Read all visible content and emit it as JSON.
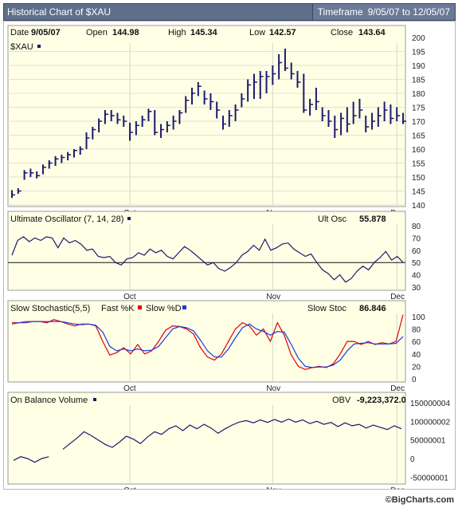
{
  "header": {
    "title": "Historical Chart of $XAU",
    "timeframe_label": "Timeframe",
    "timeframe_value": "9/05/07 to   12/05/07"
  },
  "footer": {
    "copyright": "©BigCharts.com"
  },
  "colors": {
    "panel_bg": "#ffffe6",
    "line": "#1a1a6e",
    "fast_k": "#dd0000",
    "slow_d": "#1a3adf"
  },
  "chart_data": [
    {
      "type": "ohlc",
      "panel": "price",
      "legend": "$XAU",
      "info": {
        "date_label": "Date",
        "date": "9/05/07",
        "open_label": "Open",
        "open": "144.98",
        "high_label": "High",
        "high": "145.34",
        "low_label": "Low",
        "low": "142.57",
        "close_label": "Close",
        "close": "143.64"
      },
      "ylim": [
        140,
        202
      ],
      "yticks": [
        140,
        145,
        150,
        155,
        160,
        165,
        170,
        175,
        180,
        185,
        190,
        195,
        200
      ],
      "xticks": [
        {
          "label": "Oct",
          "index": 19
        },
        {
          "label": "Nov",
          "index": 42
        },
        {
          "label": "Dec",
          "index": 62
        }
      ],
      "bars": [
        [
          142.5,
          145.3,
          143.6
        ],
        [
          144,
          146,
          145
        ],
        [
          149,
          152.5,
          151.5
        ],
        [
          150,
          153,
          151.5
        ],
        [
          149.5,
          152,
          150.5
        ],
        [
          151,
          154.5,
          153.5
        ],
        [
          153,
          156,
          155
        ],
        [
          154,
          157.5,
          156.5
        ],
        [
          155,
          158,
          157
        ],
        [
          156,
          159,
          158
        ],
        [
          157,
          160,
          159.5
        ],
        [
          158,
          161,
          160
        ],
        [
          160,
          166,
          164
        ],
        [
          163.5,
          168,
          167
        ],
        [
          166,
          171,
          170
        ],
        [
          169,
          174,
          172.5
        ],
        [
          170,
          174,
          172
        ],
        [
          169,
          173,
          170.5
        ],
        [
          168,
          172,
          170
        ],
        [
          163,
          169.5,
          166
        ],
        [
          165,
          170,
          168.5
        ],
        [
          168,
          172,
          170.5
        ],
        [
          170,
          174.5,
          173.5
        ],
        [
          165,
          174,
          166
        ],
        [
          164,
          169,
          167
        ],
        [
          166,
          170,
          168.5
        ],
        [
          167,
          172,
          170
        ],
        [
          169,
          174,
          173
        ],
        [
          173,
          179,
          177.5
        ],
        [
          176,
          182,
          180
        ],
        [
          179,
          184,
          182.5
        ],
        [
          176,
          181,
          178
        ],
        [
          174,
          180,
          177
        ],
        [
          171,
          177,
          174
        ],
        [
          167,
          172,
          169
        ],
        [
          168,
          174,
          172
        ],
        [
          170,
          176,
          174
        ],
        [
          175,
          180,
          178
        ],
        [
          177,
          185,
          183
        ],
        [
          178,
          187,
          184
        ],
        [
          178,
          188,
          186
        ],
        [
          180,
          188,
          186
        ],
        [
          183,
          190,
          187
        ],
        [
          185,
          194,
          191
        ],
        [
          188,
          196,
          189
        ],
        [
          185,
          191,
          187
        ],
        [
          182,
          188,
          184
        ],
        [
          173,
          187,
          174
        ],
        [
          172,
          178,
          176
        ],
        [
          174,
          182,
          177
        ],
        [
          170,
          175,
          172
        ],
        [
          168,
          174,
          170
        ],
        [
          164,
          172,
          167
        ],
        [
          165,
          173,
          171
        ],
        [
          166,
          175,
          169
        ],
        [
          169,
          177,
          172
        ],
        [
          171,
          178,
          174
        ],
        [
          166,
          172,
          168
        ],
        [
          167,
          173,
          170
        ],
        [
          168,
          175,
          172
        ],
        [
          170,
          177,
          174
        ],
        [
          169,
          176,
          171
        ],
        [
          170,
          175,
          172
        ],
        [
          169,
          173,
          170
        ]
      ]
    },
    {
      "type": "line",
      "panel": "ultimate-oscillator",
      "title": "Ultimate Oscillator (7, 14, 28)",
      "readout_label": "Ult Osc",
      "readout": "55.878",
      "ylim": [
        30,
        80
      ],
      "yticks": [
        30,
        40,
        50,
        60,
        70,
        80
      ],
      "reference_line": 50,
      "values": [
        56,
        68,
        71,
        67,
        70,
        68,
        71,
        70,
        62,
        70,
        66,
        68,
        65,
        60,
        61,
        55,
        54,
        55,
        50,
        48,
        53,
        54,
        58,
        56,
        61,
        58,
        60,
        55,
        53,
        58,
        63,
        60,
        56,
        52,
        48,
        50,
        45,
        43,
        46,
        50,
        56,
        59,
        64,
        60,
        69,
        60,
        62,
        65,
        66,
        61,
        58,
        55,
        57,
        50,
        44,
        41,
        36,
        40,
        34,
        37,
        43,
        47,
        44,
        50,
        54,
        59,
        52,
        55,
        50
      ]
    },
    {
      "type": "line",
      "panel": "slow-stochastic",
      "title": "Slow Stochastic(5,5)",
      "legend": [
        {
          "name": "Fast %K",
          "color": "#dd0000"
        },
        {
          "name": "Slow %D",
          "color": "#1a3adf"
        }
      ],
      "readout_label": "Slow Stoc",
      "readout": "86.846",
      "ylim": [
        0,
        105
      ],
      "yticks": [
        0,
        20,
        40,
        60,
        80,
        100
      ],
      "series": [
        {
          "name": "Fast %K",
          "values": [
            90,
            90,
            92,
            92,
            92,
            90,
            95,
            92,
            88,
            85,
            88,
            88,
            85,
            60,
            38,
            42,
            50,
            40,
            55,
            40,
            45,
            60,
            78,
            85,
            84,
            80,
            72,
            50,
            35,
            30,
            40,
            60,
            80,
            90,
            85,
            70,
            80,
            60,
            90,
            70,
            38,
            20,
            15,
            18,
            20,
            18,
            24,
            40,
            60,
            60,
            55,
            60,
            55,
            58,
            56,
            60,
            103
          ]
        },
        {
          "name": "Slow %D",
          "values": [
            88,
            90,
            90,
            92,
            92,
            92,
            92,
            92,
            90,
            88,
            87,
            88,
            86,
            75,
            52,
            45,
            48,
            45,
            48,
            45,
            46,
            52,
            66,
            80,
            84,
            82,
            77,
            62,
            45,
            35,
            35,
            48,
            66,
            82,
            88,
            80,
            76,
            70,
            76,
            75,
            55,
            33,
            20,
            18,
            19,
            19,
            22,
            30,
            45,
            56,
            57,
            58,
            56,
            56,
            56,
            57,
            68
          ]
        }
      ]
    },
    {
      "type": "line",
      "panel": "on-balance-volume",
      "title": "On Balance Volume",
      "readout_label": "OBV",
      "readout": "-9,223,372.0",
      "ylim": [
        -60000000,
        165000000
      ],
      "ytick_labels": [
        "150000004",
        "100000002",
        "50000001",
        "0",
        "-50000001"
      ],
      "ytick_values": [
        150000004,
        100000002,
        50000001,
        0,
        -50000001
      ],
      "values": [
        -5000000,
        5000000,
        0,
        -10000000,
        0,
        5000000,
        null,
        25000000,
        40000000,
        55000000,
        72000000,
        62000000,
        50000000,
        38000000,
        30000000,
        44000000,
        60000000,
        52000000,
        40000000,
        58000000,
        72000000,
        65000000,
        80000000,
        88000000,
        75000000,
        90000000,
        80000000,
        92000000,
        82000000,
        68000000,
        80000000,
        90000000,
        98000000,
        102000000,
        96000000,
        104000000,
        97000000,
        105000000,
        98000000,
        106000000,
        98000000,
        104000000,
        94000000,
        100000000,
        92000000,
        97000000,
        86000000,
        96000000,
        88000000,
        92000000,
        82000000,
        90000000,
        84000000,
        78000000,
        88000000,
        80000000
      ]
    }
  ]
}
